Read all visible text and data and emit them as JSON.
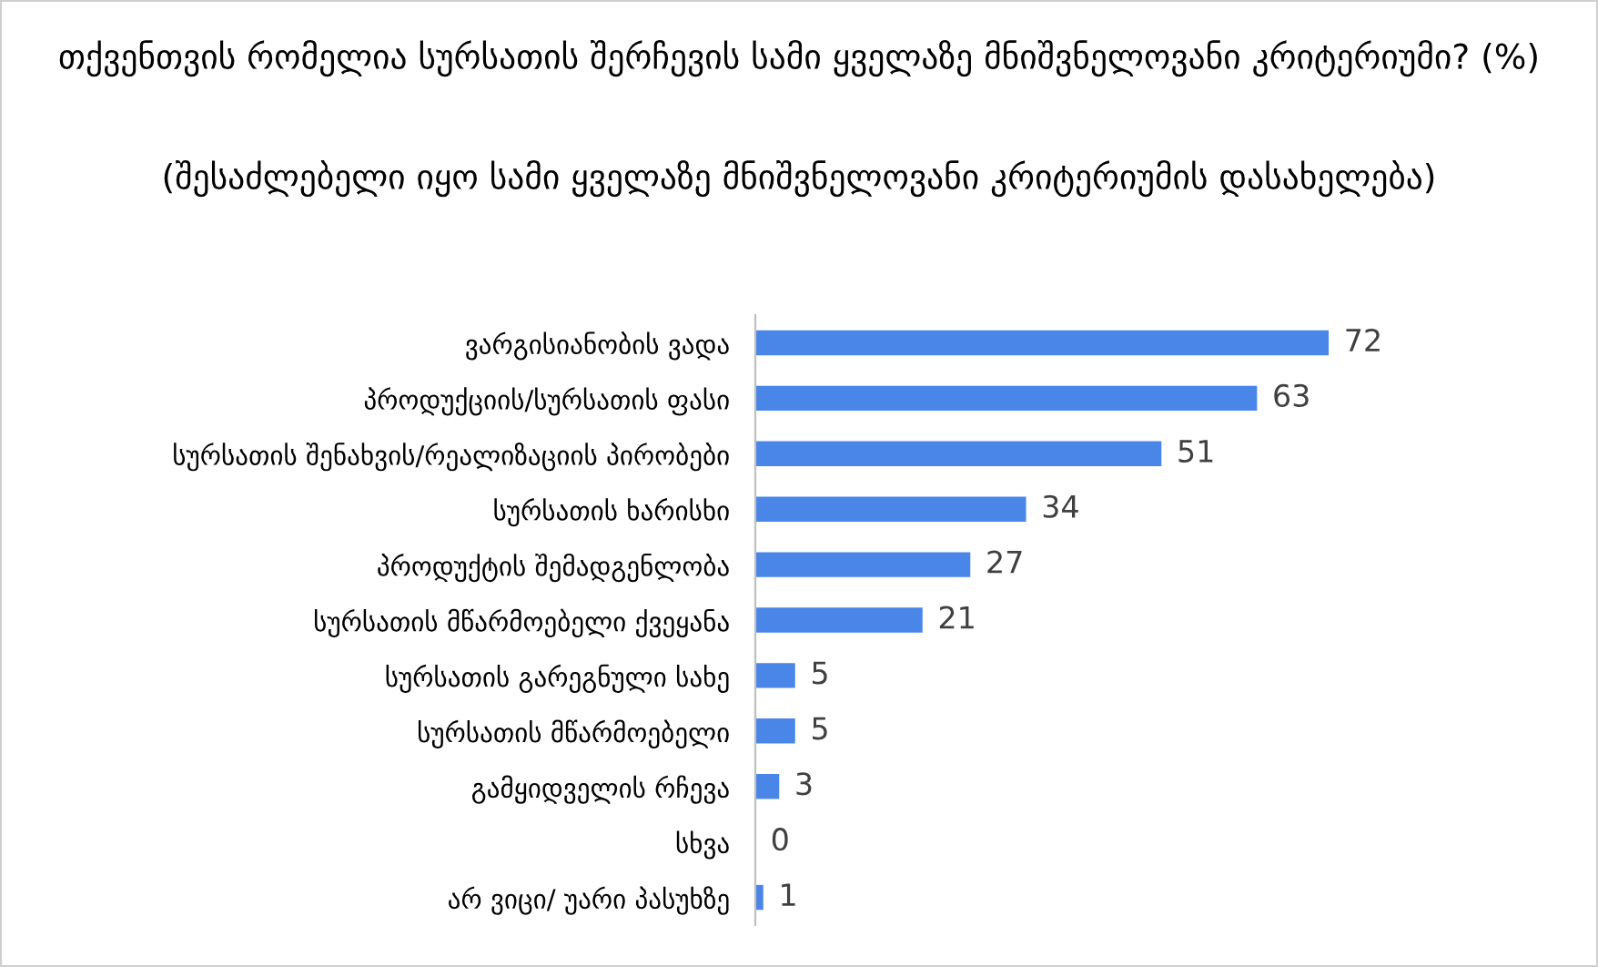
{
  "chart_data": {
    "type": "bar",
    "orientation": "horizontal",
    "title": "თქვენთვის რომელია სურსათის შერჩევის სამი ყველაზე მნიშვნელოვანი კრიტერიუმი? (%)",
    "subtitle": "(შესაძლებელი იყო სამი ყველაზე მნიშვნელოვანი კრიტერიუმის დასახელება)",
    "categories": [
      "ვარგისიანობის ვადა",
      "პროდუქციის/სურსათის ფასი",
      "სურსათის შენახვის/რეალიზაციის პირობები",
      "სურსათის ხარისხი",
      "პროდუქტის შემადგენლობა",
      "სურსათის მწარმოებელი ქვეყანა",
      "სურსათის გარეგნული სახე",
      "სურსათის მწარმოებელი",
      "გამყიდველის რჩევა",
      "სხვა",
      "არ ვიცი/ უარი პასუხზე"
    ],
    "values": [
      72,
      63,
      51,
      34,
      27,
      21,
      5,
      5,
      3,
      0,
      1
    ],
    "color": "#4a86e8",
    "data_labels": true,
    "grid": false,
    "legend": false
  }
}
